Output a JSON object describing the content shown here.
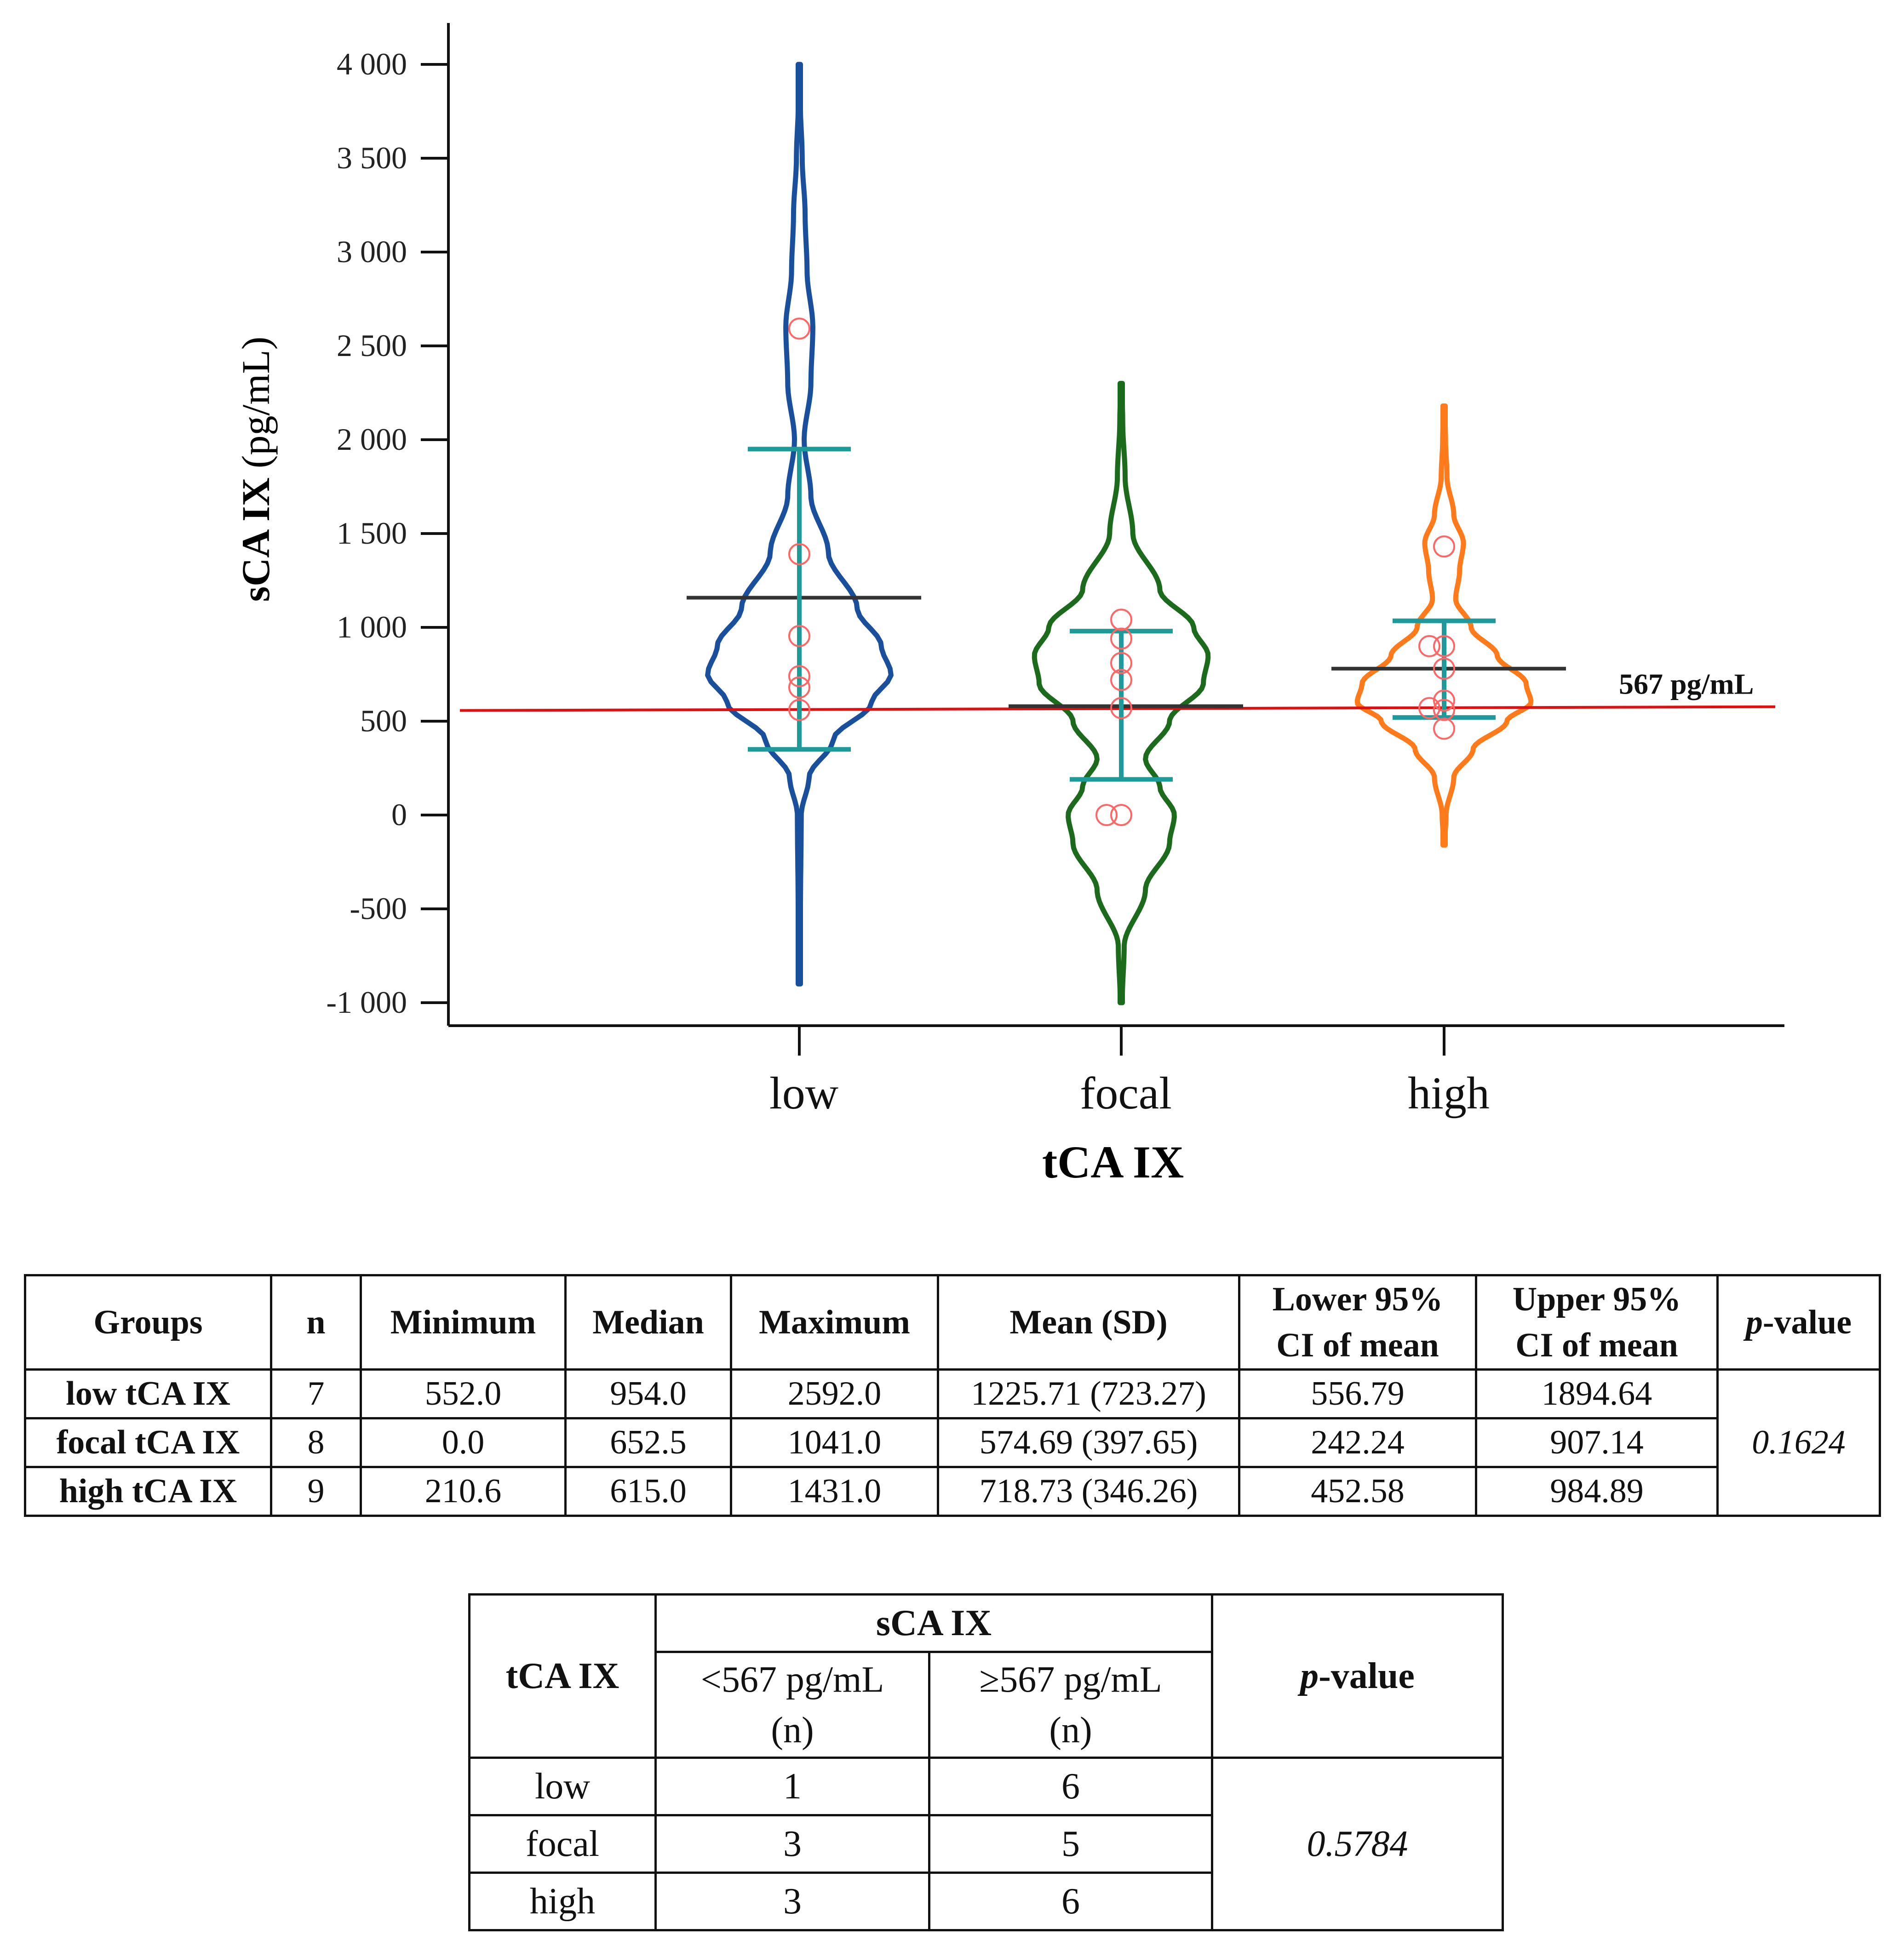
{
  "chart_data": {
    "type": "violin",
    "ylabel_bold": "sCA IX",
    "ylabel_unit": "(pg/mL)",
    "xlabel": "tCA IX",
    "ylim": [
      -1000,
      4000
    ],
    "yticks": [
      -1000,
      -500,
      0,
      500,
      1000,
      1500,
      2000,
      2500,
      3000,
      3500,
      4000
    ],
    "ytick_labels": [
      "-1 000",
      "-500",
      "0",
      "500",
      "1 000",
      "1 500",
      "2 000",
      "2 500",
      "3 000",
      "3 500",
      "4 000"
    ],
    "categories": [
      "low",
      "focal",
      "high"
    ],
    "colors": {
      "low": "#1a4f9c",
      "focal": "#1c6b1c",
      "high": "#ff7a1a",
      "points": "#ff6666",
      "errorbar": "#1f9a9a",
      "mean": "#333333",
      "threshold": "#dd1111"
    },
    "threshold": {
      "value": 567,
      "label": "567 pg/mL"
    },
    "series": [
      {
        "category": "low",
        "points": [
          2592,
          1390,
          954,
          740,
          680,
          560
        ],
        "mean": 1158,
        "errorbar": [
          350,
          1950
        ],
        "violin_range": [
          -900,
          4000
        ],
        "violin_profile": [
          [
            -900,
            0.01
          ],
          [
            -500,
            0.012
          ],
          [
            0,
            0.02
          ],
          [
            200,
            0.1
          ],
          [
            400,
            0.35
          ],
          [
            600,
            0.75
          ],
          [
            750,
            0.95
          ],
          [
            900,
            0.85
          ],
          [
            1100,
            0.6
          ],
          [
            1400,
            0.3
          ],
          [
            1700,
            0.12
          ],
          [
            2000,
            0.05
          ],
          [
            2300,
            0.12
          ],
          [
            2600,
            0.14
          ],
          [
            2900,
            0.08
          ],
          [
            3200,
            0.06
          ],
          [
            3500,
            0.03
          ],
          [
            3800,
            0.01
          ],
          [
            4000,
            0.005
          ]
        ]
      },
      {
        "category": "focal",
        "points": [
          1041,
          940,
          810,
          720,
          570,
          0,
          0
        ],
        "mean": 580,
        "errorbar": [
          190,
          980
        ],
        "violin_range": [
          -1000,
          2300
        ],
        "violin_profile": [
          [
            -1000,
            0.01
          ],
          [
            -700,
            0.03
          ],
          [
            -400,
            0.25
          ],
          [
            -150,
            0.5
          ],
          [
            0,
            0.55
          ],
          [
            150,
            0.4
          ],
          [
            300,
            0.25
          ],
          [
            500,
            0.5
          ],
          [
            700,
            0.85
          ],
          [
            850,
            0.9
          ],
          [
            1000,
            0.75
          ],
          [
            1200,
            0.4
          ],
          [
            1500,
            0.12
          ],
          [
            1800,
            0.04
          ],
          [
            2100,
            0.015
          ],
          [
            2300,
            0.005
          ]
        ]
      },
      {
        "category": "high",
        "points": [
          1431,
          900,
          900,
          780,
          610,
          570,
          560,
          460
        ],
        "mean": 780,
        "errorbar": [
          520,
          1035
        ],
        "violin_range": [
          -160,
          2180
        ],
        "violin_profile": [
          [
            -160,
            0.005
          ],
          [
            0,
            0.02
          ],
          [
            200,
            0.1
          ],
          [
            350,
            0.3
          ],
          [
            500,
            0.65
          ],
          [
            600,
            0.9
          ],
          [
            700,
            0.85
          ],
          [
            850,
            0.55
          ],
          [
            1000,
            0.28
          ],
          [
            1150,
            0.12
          ],
          [
            1300,
            0.16
          ],
          [
            1450,
            0.2
          ],
          [
            1600,
            0.1
          ],
          [
            1800,
            0.03
          ],
          [
            2000,
            0.015
          ],
          [
            2180,
            0.005
          ]
        ]
      }
    ]
  },
  "stats_table": {
    "headers": [
      "Groups",
      "n",
      "Minimum",
      "Median",
      "Maximum",
      "Mean (SD)",
      "Lower 95%",
      "CI of mean",
      "Upper 95%",
      "CI of mean",
      "p",
      "-value"
    ],
    "rows": [
      [
        "low tCA IX",
        "7",
        "552.0",
        "954.0",
        "2592.0",
        "1225.71 (723.27)",
        "556.79",
        "1894.64"
      ],
      [
        "focal tCA IX",
        "8",
        "0.0",
        "652.5",
        "1041.0",
        "574.69 (397.65)",
        "242.24",
        "907.14"
      ],
      [
        "high tCA IX",
        "9",
        "210.6",
        "615.0",
        "1431.0",
        "718.73 (346.26)",
        "452.58",
        "984.89"
      ]
    ],
    "p_value": "0.1624"
  },
  "cross_table": {
    "row_header": "tCA IX",
    "group_header": "sCA IX",
    "col1_line1": "<567 pg/mL",
    "col1_line2": "(n)",
    "col2_line1": "≥567 pg/mL",
    "col2_line2": "(n)",
    "p_label_italic": "p",
    "p_label_rest": "-value",
    "rows": [
      [
        "low",
        "1",
        "6"
      ],
      [
        "focal",
        "3",
        "5"
      ],
      [
        "high",
        "3",
        "6"
      ]
    ],
    "p_value": "0.5784"
  }
}
